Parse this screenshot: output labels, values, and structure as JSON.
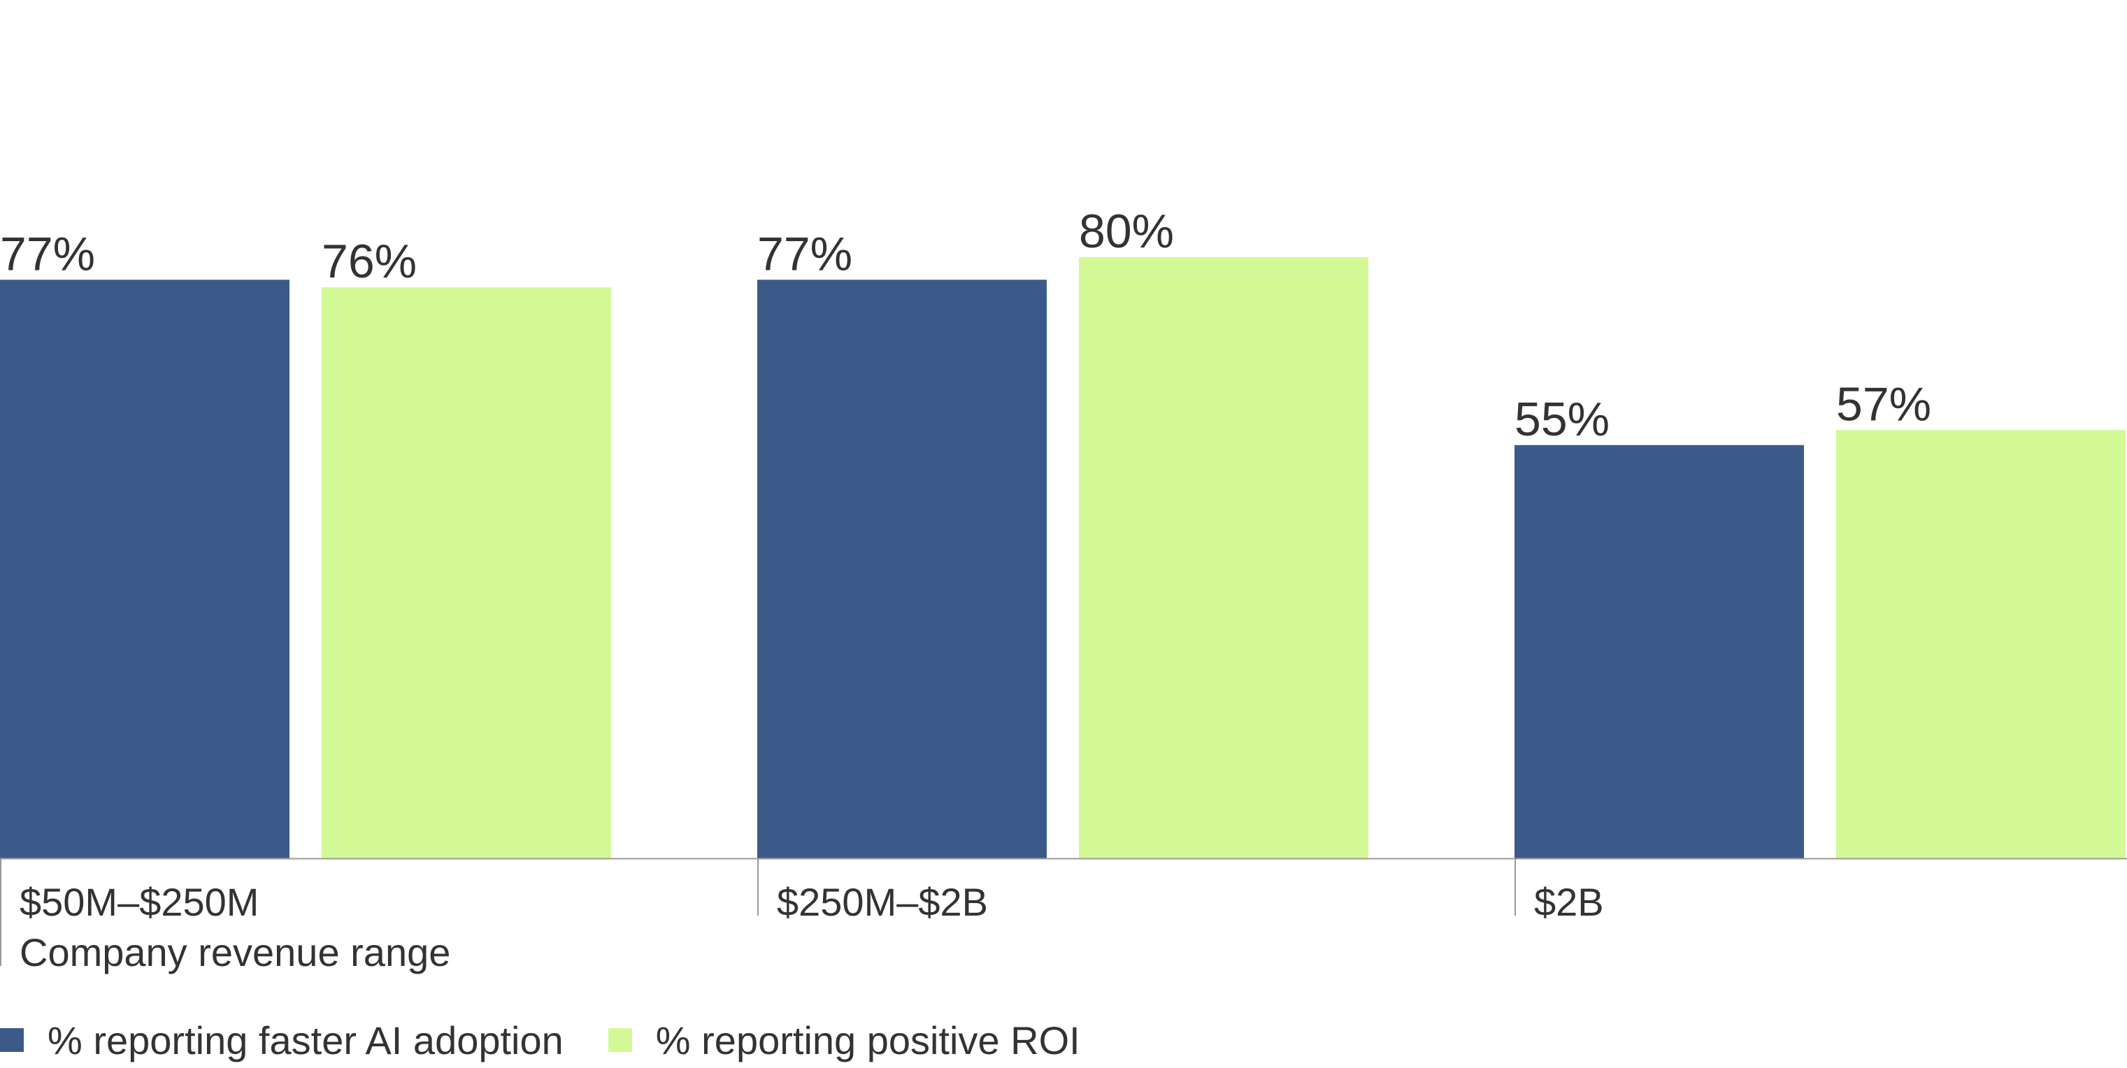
{
  "chart_data": {
    "type": "bar",
    "categories": [
      "$50M–$250M",
      "$250M–$2B",
      "$2B"
    ],
    "xlabel": "Company revenue range",
    "series": [
      {
        "name": "% reporting faster AI adoption",
        "values": [
          77,
          77,
          55
        ],
        "labels": [
          "77%",
          "77%",
          "55%"
        ],
        "color": "#3c5a89"
      },
      {
        "name": "% reporting positive ROI",
        "values": [
          76,
          80,
          57
        ],
        "labels": [
          "76%",
          "80%",
          "57%"
        ],
        "color": "#d2f996"
      }
    ],
    "ylim": [
      0,
      100
    ],
    "grid": false,
    "legend_position": "bottom-left",
    "axis_color": "#999999"
  }
}
